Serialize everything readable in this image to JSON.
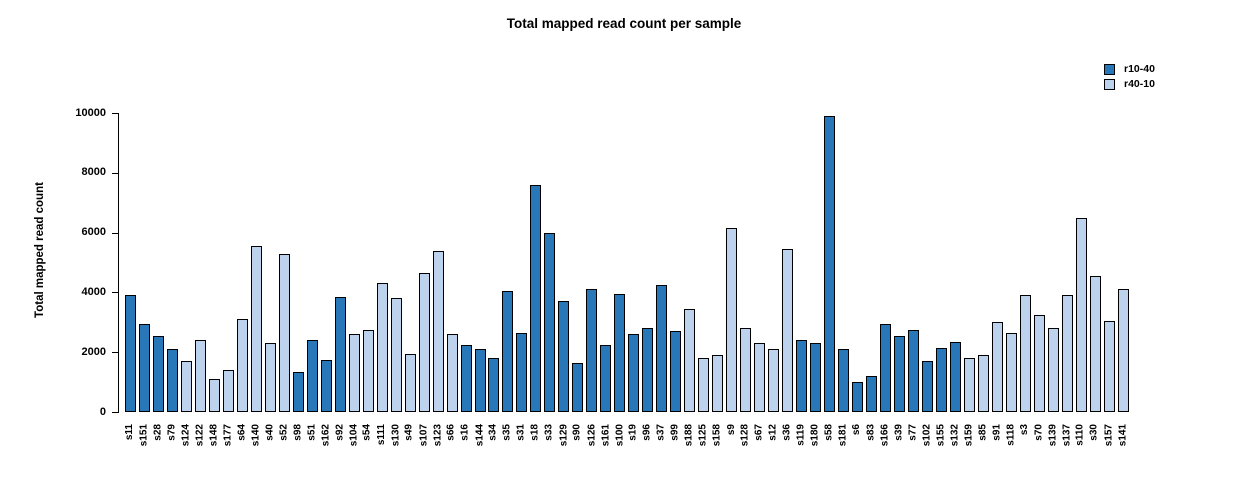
{
  "figure": {
    "title": "Total mapped read count per sample",
    "y_axis_title": "Total mapped read count"
  },
  "legend": {
    "position": "top-right",
    "items": [
      {
        "label": "r10-40",
        "color": "#2878b9"
      },
      {
        "label": "r40-10",
        "color": "#bdd2ec"
      }
    ]
  },
  "chart_data": {
    "type": "bar",
    "title": "Total mapped read count per sample",
    "xlabel": "",
    "ylabel": "Total mapped read count",
    "ylim": [
      0,
      10000
    ],
    "yticks": [
      0,
      2000,
      4000,
      6000,
      8000,
      10000
    ],
    "grid": false,
    "legend_position": "top-right",
    "bar_border_color": "#000000",
    "series": [
      {
        "name": "r10-40",
        "color": "#2878b9"
      },
      {
        "name": "r40-10",
        "color": "#bdd2ec"
      }
    ],
    "bars": [
      {
        "sample": "s11",
        "value": 3900,
        "series": "r10-40"
      },
      {
        "sample": "s151",
        "value": 2950,
        "series": "r10-40"
      },
      {
        "sample": "s28",
        "value": 2550,
        "series": "r10-40"
      },
      {
        "sample": "s79",
        "value": 2100,
        "series": "r10-40"
      },
      {
        "sample": "s124",
        "value": 1700,
        "series": "r40-10"
      },
      {
        "sample": "s122",
        "value": 2400,
        "series": "r40-10"
      },
      {
        "sample": "s148",
        "value": 1100,
        "series": "r40-10"
      },
      {
        "sample": "s177",
        "value": 1400,
        "series": "r40-10"
      },
      {
        "sample": "s64",
        "value": 3100,
        "series": "r40-10"
      },
      {
        "sample": "s140",
        "value": 5550,
        "series": "r40-10"
      },
      {
        "sample": "s40",
        "value": 2300,
        "series": "r40-10"
      },
      {
        "sample": "s52",
        "value": 5300,
        "series": "r40-10"
      },
      {
        "sample": "s98",
        "value": 1350,
        "series": "r10-40"
      },
      {
        "sample": "s51",
        "value": 2400,
        "series": "r10-40"
      },
      {
        "sample": "s162",
        "value": 1750,
        "series": "r10-40"
      },
      {
        "sample": "s92",
        "value": 3850,
        "series": "r10-40"
      },
      {
        "sample": "s104",
        "value": 2600,
        "series": "r40-10"
      },
      {
        "sample": "s54",
        "value": 2750,
        "series": "r40-10"
      },
      {
        "sample": "s111",
        "value": 4300,
        "series": "r40-10"
      },
      {
        "sample": "s130",
        "value": 3800,
        "series": "r40-10"
      },
      {
        "sample": "s49",
        "value": 1950,
        "series": "r40-10"
      },
      {
        "sample": "s107",
        "value": 4650,
        "series": "r40-10"
      },
      {
        "sample": "s123",
        "value": 5400,
        "series": "r40-10"
      },
      {
        "sample": "s66",
        "value": 2600,
        "series": "r40-10"
      },
      {
        "sample": "s16",
        "value": 2250,
        "series": "r10-40"
      },
      {
        "sample": "s144",
        "value": 2100,
        "series": "r10-40"
      },
      {
        "sample": "s34",
        "value": 1800,
        "series": "r10-40"
      },
      {
        "sample": "s35",
        "value": 4050,
        "series": "r10-40"
      },
      {
        "sample": "s31",
        "value": 2650,
        "series": "r10-40"
      },
      {
        "sample": "s18",
        "value": 7600,
        "series": "r10-40"
      },
      {
        "sample": "s33",
        "value": 6000,
        "series": "r10-40"
      },
      {
        "sample": "s129",
        "value": 3700,
        "series": "r10-40"
      },
      {
        "sample": "s90",
        "value": 1650,
        "series": "r10-40"
      },
      {
        "sample": "s126",
        "value": 4100,
        "series": "r10-40"
      },
      {
        "sample": "s161",
        "value": 2250,
        "series": "r10-40"
      },
      {
        "sample": "s100",
        "value": 3950,
        "series": "r10-40"
      },
      {
        "sample": "s19",
        "value": 2600,
        "series": "r10-40"
      },
      {
        "sample": "s96",
        "value": 2800,
        "series": "r10-40"
      },
      {
        "sample": "s37",
        "value": 4250,
        "series": "r10-40"
      },
      {
        "sample": "s99",
        "value": 2700,
        "series": "r10-40"
      },
      {
        "sample": "s188",
        "value": 3450,
        "series": "r40-10"
      },
      {
        "sample": "s125",
        "value": 1800,
        "series": "r40-10"
      },
      {
        "sample": "s158",
        "value": 1900,
        "series": "r40-10"
      },
      {
        "sample": "s9",
        "value": 6150,
        "series": "r40-10"
      },
      {
        "sample": "s128",
        "value": 2800,
        "series": "r40-10"
      },
      {
        "sample": "s67",
        "value": 2300,
        "series": "r40-10"
      },
      {
        "sample": "s12",
        "value": 2100,
        "series": "r40-10"
      },
      {
        "sample": "s36",
        "value": 5450,
        "series": "r40-10"
      },
      {
        "sample": "s119",
        "value": 2400,
        "series": "r10-40"
      },
      {
        "sample": "s180",
        "value": 2300,
        "series": "r10-40"
      },
      {
        "sample": "s58",
        "value": 9900,
        "series": "r10-40"
      },
      {
        "sample": "s181",
        "value": 2100,
        "series": "r10-40"
      },
      {
        "sample": "s6",
        "value": 1000,
        "series": "r10-40"
      },
      {
        "sample": "s83",
        "value": 1200,
        "series": "r10-40"
      },
      {
        "sample": "s166",
        "value": 2950,
        "series": "r10-40"
      },
      {
        "sample": "s39",
        "value": 2550,
        "series": "r10-40"
      },
      {
        "sample": "s77",
        "value": 2750,
        "series": "r10-40"
      },
      {
        "sample": "s102",
        "value": 1700,
        "series": "r10-40"
      },
      {
        "sample": "s155",
        "value": 2150,
        "series": "r10-40"
      },
      {
        "sample": "s132",
        "value": 2350,
        "series": "r10-40"
      },
      {
        "sample": "s159",
        "value": 1800,
        "series": "r40-10"
      },
      {
        "sample": "s85",
        "value": 1900,
        "series": "r40-10"
      },
      {
        "sample": "s91",
        "value": 3000,
        "series": "r40-10"
      },
      {
        "sample": "s118",
        "value": 2650,
        "series": "r40-10"
      },
      {
        "sample": "s3",
        "value": 3900,
        "series": "r40-10"
      },
      {
        "sample": "s70",
        "value": 3250,
        "series": "r40-10"
      },
      {
        "sample": "s139",
        "value": 2800,
        "series": "r40-10"
      },
      {
        "sample": "s137",
        "value": 3900,
        "series": "r40-10"
      },
      {
        "sample": "s110",
        "value": 6500,
        "series": "r40-10"
      },
      {
        "sample": "s30",
        "value": 4550,
        "series": "r40-10"
      },
      {
        "sample": "s157",
        "value": 3050,
        "series": "r40-10"
      },
      {
        "sample": "s141",
        "value": 4100,
        "series": "r40-10"
      }
    ]
  }
}
